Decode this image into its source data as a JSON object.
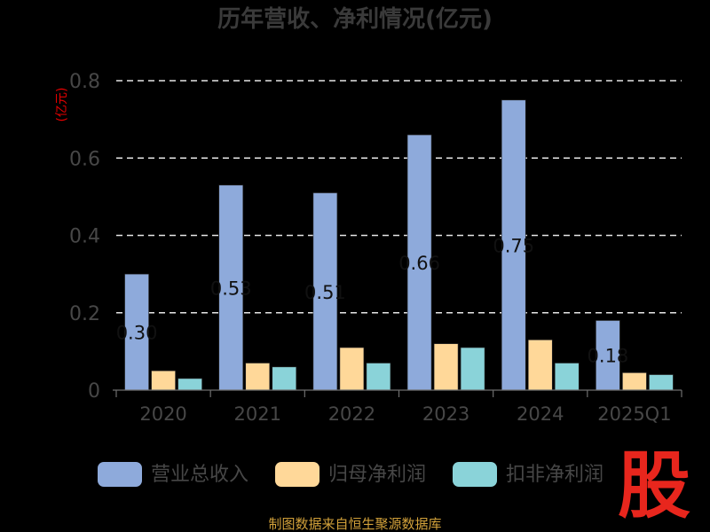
{
  "chart_data": {
    "type": "bar",
    "title": "历年营收、净利情况(亿元)",
    "ylabel": "(亿元)",
    "xlabel": "",
    "categories": [
      "2020",
      "2021",
      "2022",
      "2023",
      "2024",
      "2025Q1"
    ],
    "ylim": [
      0,
      0.8
    ],
    "yticks": [
      0,
      0.2,
      0.4,
      0.6,
      0.8
    ],
    "ytick_labels": [
      "0",
      "0.2",
      "0.4",
      "0.6",
      "0.8"
    ],
    "grid": true,
    "legend_position": "bottom",
    "series": [
      {
        "name": "营业总收入",
        "color": "#8eaadb",
        "values": [
          0.3,
          0.53,
          0.51,
          0.66,
          0.75,
          0.18
        ],
        "data_labels": [
          "0.30",
          "0.53",
          "0.51",
          "0.66",
          "0.75",
          "0.18"
        ]
      },
      {
        "name": "归母净利润",
        "color": "#ffd899",
        "values": [
          0.05,
          0.07,
          0.11,
          0.12,
          0.13,
          0.045
        ]
      },
      {
        "name": "扣非净利润",
        "color": "#8ad3d9",
        "values": [
          0.03,
          0.06,
          0.07,
          0.11,
          0.07,
          0.04
        ]
      }
    ]
  },
  "source": "制图数据来自恒生聚源数据库",
  "logo_text": "股"
}
